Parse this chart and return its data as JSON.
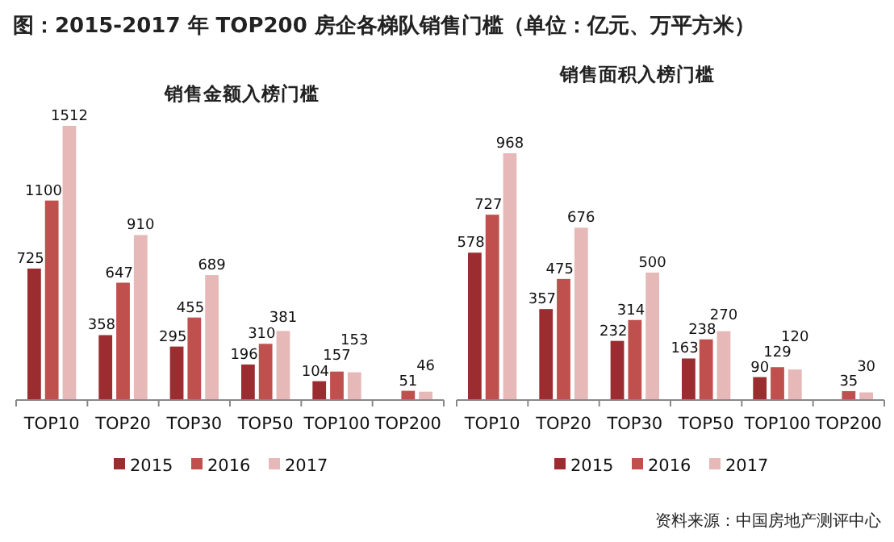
{
  "chart_data": [
    {
      "type": "bar",
      "title": "图：2015-2017 年 TOP200 房企各梯队销售门槛（单位：亿元、万平方米）",
      "subtitle": "销售金额入榜门槛",
      "categories": [
        "TOP10",
        "TOP20",
        "TOP30",
        "TOP50",
        "TOP100",
        "TOP200"
      ],
      "series": [
        {
          "name": "2015",
          "color": "#9b2d30",
          "values": [
            725,
            358,
            295,
            196,
            104,
            null
          ]
        },
        {
          "name": "2016",
          "color": "#c0504d",
          "values": [
            1100,
            647,
            455,
            310,
            157,
            51
          ]
        },
        {
          "name": "2017",
          "color": "#e6b9b8",
          "values": [
            1512,
            910,
            689,
            381,
            153,
            46
          ]
        }
      ],
      "data_labels": true,
      "legend": "bottom"
    },
    {
      "type": "bar",
      "title": "销售面积入榜门槛",
      "categories": [
        "TOP10",
        "TOP20",
        "TOP30",
        "TOP50",
        "TOP100",
        "TOP200"
      ],
      "series": [
        {
          "name": "2015",
          "color": "#9b2d30",
          "values": [
            578,
            357,
            232,
            163,
            90,
            null
          ]
        },
        {
          "name": "2016",
          "color": "#c0504d",
          "values": [
            727,
            475,
            314,
            238,
            129,
            35
          ]
        },
        {
          "name": "2017",
          "color": "#e6b9b8",
          "values": [
            968,
            676,
            500,
            270,
            120,
            30
          ]
        }
      ],
      "data_labels": true,
      "legend": "bottom",
      "annotations": [
        "资料来源：中国房地产测评中心"
      ]
    }
  ]
}
